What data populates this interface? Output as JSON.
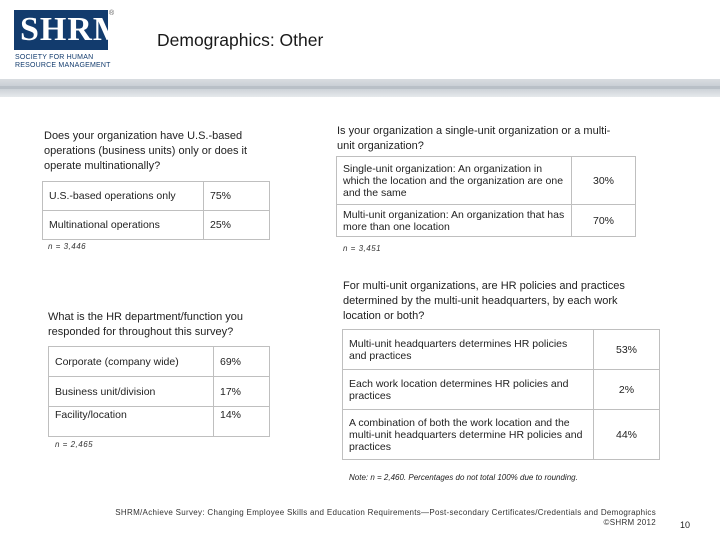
{
  "logo": {
    "wordmark": "SHRM",
    "registered": "®",
    "tagline_line1": "SOCIETY FOR HUMAN",
    "tagline_line2": "RESOURCE MANAGEMENT"
  },
  "title": "Demographics: Other",
  "q1": {
    "question": "Does your organization have U.S.-based operations (business units) only or does it operate multinationally?",
    "rows": [
      {
        "label": "U.S.-based operations only",
        "value": "75%"
      },
      {
        "label": "Multinational operations",
        "value": "25%"
      }
    ],
    "n": "n = 3,446"
  },
  "q2": {
    "question": "What is the HR department/function you responded for throughout this survey?",
    "rows": [
      {
        "label": "Corporate (company wide)",
        "value": "69%"
      },
      {
        "label": "Business unit/division",
        "value": "17%"
      },
      {
        "label": "Facility/location",
        "value": "14%"
      }
    ],
    "n": "n = 2,465"
  },
  "q3": {
    "question": "Is your organization a single-unit organization or a multi-unit organization?",
    "rows": [
      {
        "label": "Single-unit organization: An organization in which the location and the organization are one and the same",
        "value": "30%"
      },
      {
        "label": "Multi-unit organization: An organization that has more than one location",
        "value": "70%"
      }
    ],
    "n": "n = 3,451"
  },
  "q4": {
    "question": "For multi-unit organizations, are HR policies and practices determined by the multi-unit headquarters, by each work location or both?",
    "rows": [
      {
        "label": "Multi-unit headquarters determines HR policies and practices",
        "value": "53%"
      },
      {
        "label": "Each work location determines HR policies and practices",
        "value": "2%"
      },
      {
        "label": "A combination of both the work location and the multi-unit headquarters determine HR policies and practices",
        "value": "44%"
      }
    ],
    "note": "Note: n = 2,460. Percentages do not total 100% due to rounding."
  },
  "footer": {
    "line1": "SHRM/Achieve Survey: Changing Employee Skills and Education Requirements—Post-secondary Certificates/Credentials and Demographics",
    "line2": "©SHRM 2012",
    "page": "10"
  },
  "colors": {
    "logo_blue": "#123b6d",
    "band_gray": "#c7cdd3"
  }
}
